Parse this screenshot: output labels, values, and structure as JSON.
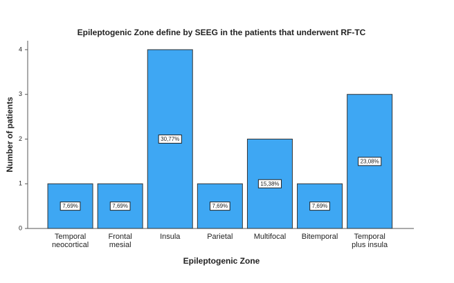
{
  "chart_data": {
    "type": "bar",
    "title": "Epileptogenic Zone define by SEEG in the patients that underwent RF-TC",
    "x_label": "Epileptogenic Zone",
    "y_label": "Number of patients",
    "categories": [
      "Temporal neocortical",
      "Frontal mesial",
      "Insula",
      "Parietal",
      "Multifocal",
      "Bitemporal",
      "Temporal plus insula"
    ],
    "values": [
      1,
      1,
      4,
      1,
      2,
      1,
      3
    ],
    "value_labels": [
      "7,69%",
      "7,69%",
      "30,77%",
      "7,69%",
      "15,38%",
      "7,69%",
      "23,08%"
    ],
    "color": "#3ea7f3",
    "ylim": [
      0,
      4.2
    ],
    "yticks": [
      0,
      1,
      2,
      3,
      4
    ],
    "grid": false
  }
}
